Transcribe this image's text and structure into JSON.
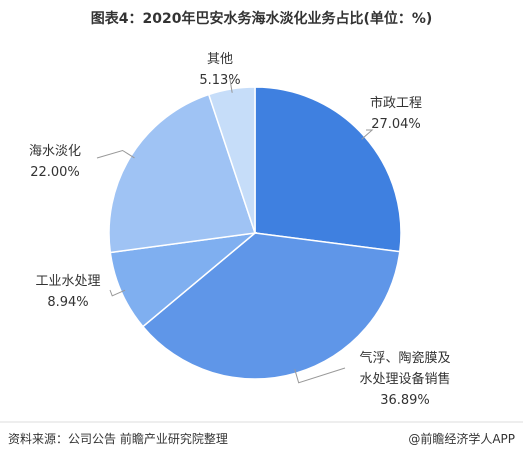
{
  "chart_data": {
    "type": "pie",
    "title": "图表4：2020年巴安水务海水淡化业务占比(单位：%)",
    "categories": [
      "市政工程",
      "气浮、陶瓷膜及水处理设备销售",
      "工业水处理",
      "海水淡化",
      "其他"
    ],
    "values": [
      27.04,
      36.89,
      8.94,
      22.0,
      5.13
    ],
    "value_labels": [
      "27.04%",
      "36.89%",
      "8.94%",
      "22.00%",
      "5.13%"
    ],
    "colors": [
      "#3f80e0",
      "#5f96e8",
      "#7faff0",
      "#9fc3f4",
      "#c6ddf9"
    ],
    "source": "资料来源：公司公告 前瞻产业研究院整理",
    "credit": "@前瞻经济学人APP"
  }
}
